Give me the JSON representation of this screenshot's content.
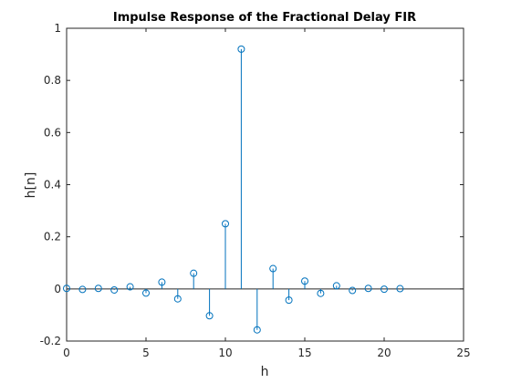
{
  "chart_data": {
    "type": "stem",
    "title": "Impulse Response of the Fractional Delay FIR",
    "xlabel": "h",
    "ylabel": "h[n]",
    "xlim": [
      0,
      25
    ],
    "ylim": [
      -0.2,
      1
    ],
    "xticks": [
      0,
      5,
      10,
      15,
      20,
      25
    ],
    "yticks": [
      -0.2,
      0,
      0.2,
      0.4,
      0.6,
      0.8,
      1
    ],
    "xtick_labels": [
      "0",
      "5",
      "10",
      "15",
      "20",
      "25"
    ],
    "ytick_labels": [
      "-0.2",
      "0",
      "0.2",
      "0.4",
      "0.6",
      "0.8",
      "1"
    ],
    "grid": false,
    "series": [
      {
        "color": "#0072BD",
        "x": [
          0,
          1,
          2,
          3,
          4,
          5,
          6,
          7,
          8,
          9,
          10,
          11,
          12,
          13,
          14,
          15,
          16,
          17,
          18,
          19,
          20,
          21
        ],
        "y": [
          0.002,
          -0.002,
          0.002,
          -0.004,
          0.008,
          -0.016,
          0.026,
          -0.038,
          0.06,
          -0.103,
          0.25,
          0.92,
          -0.157,
          0.078,
          -0.043,
          0.03,
          -0.017,
          0.012,
          -0.006,
          0.002,
          -0.001,
          0.001
        ]
      }
    ]
  }
}
